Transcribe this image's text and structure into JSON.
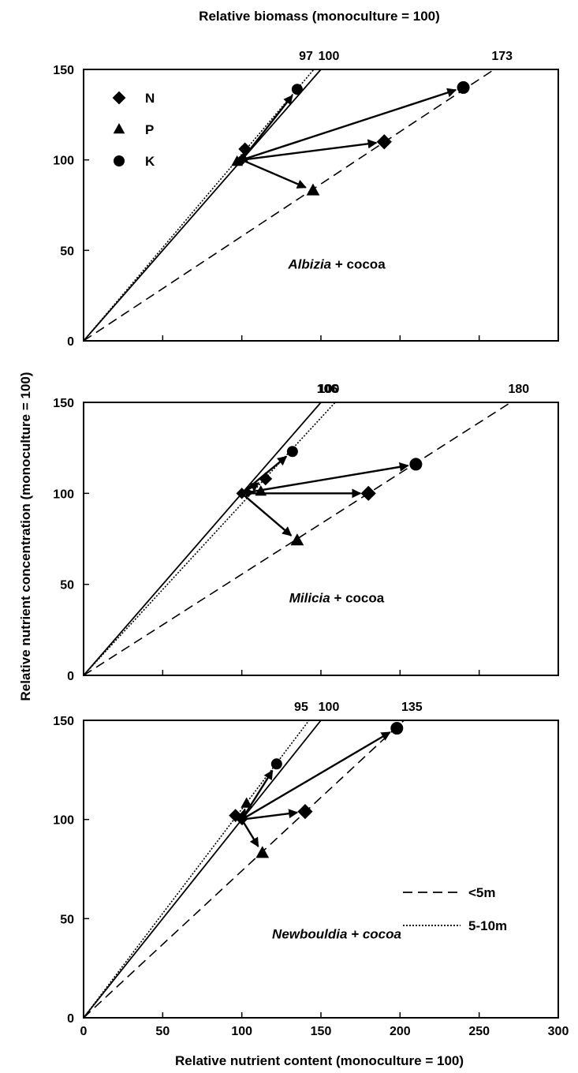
{
  "figure": {
    "top_axis_label": "Relative biomass (monoculture = 100)",
    "y_axis_label": "Relative nutrient concentration (monoculture = 100)",
    "x_axis_label": "Relative nutrient content (monoculture = 100)",
    "legend_markers": [
      {
        "label": "N",
        "shape": "diamond"
      },
      {
        "label": "P",
        "shape": "triangle"
      },
      {
        "label": "K",
        "shape": "circle"
      }
    ],
    "legend_lines": [
      {
        "label": "<5m",
        "style": "dashed"
      },
      {
        "label": "5-10m",
        "style": "dotted"
      }
    ]
  },
  "chart_data": [
    {
      "type": "scatter",
      "panel_title_italic": "Albizia",
      "panel_title_rest": " + cocoa",
      "xlim": [
        0,
        300
      ],
      "ylim": [
        0,
        150
      ],
      "x_ticks": [
        0,
        50,
        100,
        150,
        200,
        250,
        300
      ],
      "y_ticks": [
        0,
        50,
        100,
        150
      ],
      "show_x_tick_labels": false,
      "show_legend_markers": true,
      "show_legend_lines": false,
      "origin": [
        100,
        100
      ],
      "isolines": [
        {
          "label": "97",
          "style": "dotted",
          "x_at_top": 145.5
        },
        {
          "label": "100",
          "style": "solid",
          "x_at_top": 150
        },
        {
          "label": "173",
          "style": "dashed",
          "x_at_top": 259.5
        }
      ],
      "vectors": [
        {
          "series": "N",
          "style": "dotted",
          "x": 102,
          "y": 106
        },
        {
          "series": "P",
          "style": "dotted",
          "x": 97,
          "y": 99
        },
        {
          "series": "K",
          "style": "dotted",
          "x": 135,
          "y": 139
        },
        {
          "series": "N",
          "style": "dashed",
          "x": 190,
          "y": 110
        },
        {
          "series": "P",
          "style": "dashed",
          "x": 145,
          "y": 83
        },
        {
          "series": "K",
          "style": "dashed",
          "x": 240,
          "y": 140
        }
      ]
    },
    {
      "type": "scatter",
      "panel_title_italic": "Milicia",
      "panel_title_rest": " + cocoa",
      "xlim": [
        0,
        300
      ],
      "ylim": [
        0,
        150
      ],
      "x_ticks": [
        0,
        50,
        100,
        150,
        200,
        250,
        300
      ],
      "y_ticks": [
        0,
        50,
        100,
        150
      ],
      "show_x_tick_labels": false,
      "show_legend_markers": false,
      "show_legend_lines": false,
      "origin": [
        100,
        100
      ],
      "isolines": [
        {
          "label": "100",
          "style": "solid",
          "x_at_top": 150
        },
        {
          "label": "106",
          "style": "dotted",
          "x_at_top": 159
        },
        {
          "label": "180",
          "style": "dashed",
          "x_at_top": 270
        }
      ],
      "vectors": [
        {
          "series": "N",
          "style": "dotted",
          "x": 115,
          "y": 108
        },
        {
          "series": "P",
          "style": "dotted",
          "x": 112,
          "y": 101
        },
        {
          "series": "K",
          "style": "dotted",
          "x": 132,
          "y": 123
        },
        {
          "series": "N",
          "style": "dashed",
          "x": 180,
          "y": 100
        },
        {
          "series": "P",
          "style": "dashed",
          "x": 135,
          "y": 74
        },
        {
          "series": "K",
          "style": "dashed",
          "x": 210,
          "y": 116
        }
      ]
    },
    {
      "type": "scatter",
      "panel_title_italic": "Newbouldia + cocoa",
      "panel_title_rest": "",
      "xlim": [
        0,
        300
      ],
      "ylim": [
        0,
        150
      ],
      "x_ticks": [
        0,
        50,
        100,
        150,
        200,
        250,
        300
      ],
      "y_ticks": [
        0,
        50,
        100,
        150
      ],
      "show_x_tick_labels": true,
      "show_legend_markers": false,
      "show_legend_lines": true,
      "origin": [
        100,
        100
      ],
      "isolines": [
        {
          "label": "95",
          "style": "dotted",
          "x_at_top": 142.5
        },
        {
          "label": "100",
          "style": "solid",
          "x_at_top": 150
        },
        {
          "label": "135",
          "style": "dashed",
          "x_at_top": 202.5
        }
      ],
      "vectors": [
        {
          "series": "N",
          "style": "dotted",
          "x": 96,
          "y": 102
        },
        {
          "series": "P",
          "style": "dotted",
          "x": 103,
          "y": 108
        },
        {
          "series": "K",
          "style": "dotted",
          "x": 122,
          "y": 128
        },
        {
          "series": "N",
          "style": "dashed",
          "x": 140,
          "y": 104
        },
        {
          "series": "P",
          "style": "dashed",
          "x": 113,
          "y": 83
        },
        {
          "series": "K",
          "style": "dashed",
          "x": 198,
          "y": 146
        }
      ]
    }
  ]
}
